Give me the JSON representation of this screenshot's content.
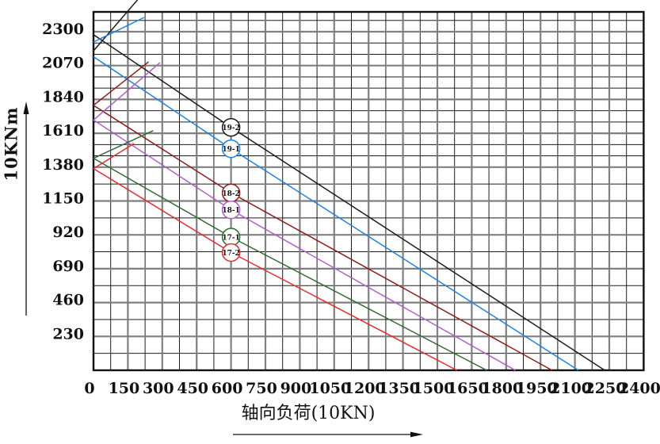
{
  "chart_data": {
    "type": "line",
    "title": "",
    "xlabel": "轴向负荷(10KN)",
    "ylabel": "10KNm",
    "xlim": [
      0,
      2400
    ],
    "ylim": [
      0,
      2434
    ],
    "grid": true,
    "legend_position": "on-line-circled-markers",
    "x_ticks": [
      0,
      150,
      300,
      450,
      600,
      750,
      900,
      1050,
      1200,
      1350,
      1500,
      1650,
      1800,
      1950,
      2100,
      2250,
      2400
    ],
    "y_ticks": [
      230,
      460,
      690,
      920,
      1150,
      1380,
      1610,
      1840,
      2070,
      2300
    ],
    "x_minor": [
      75,
      225,
      375,
      525,
      675,
      825,
      975,
      1125,
      1275,
      1425,
      1575,
      1725,
      1875,
      2025,
      2175,
      2325
    ],
    "y_minor": [
      115,
      345,
      575,
      805,
      1035,
      1265,
      1456.7,
      1533.3,
      1686.7,
      1763.3,
      1916.7,
      1993.3,
      2146.7,
      2223.3,
      2376.7
    ],
    "axis_color": "#111111",
    "major_grid_color": "#7f7f7f",
    "minor_grid_color": "#1c1c1c",
    "series": [
      {
        "name": "19-2",
        "color": "#1b1b1b",
        "points": [
          [
            0,
            2280
          ],
          [
            600,
            1650
          ],
          [
            2230,
            0
          ]
        ],
        "tail": [
          [
            0,
            2170
          ],
          [
            192,
            2516
          ]
        ]
      },
      {
        "name": "19-1",
        "color": "#1E82E4",
        "points": [
          [
            0,
            2130
          ],
          [
            600,
            1505
          ],
          [
            2115,
            0
          ]
        ],
        "tail": [
          [
            0,
            2230
          ],
          [
            221,
            2397
          ]
        ]
      },
      {
        "name": "18-2",
        "color": "#8E1C1C",
        "points": [
          [
            0,
            1800
          ],
          [
            600,
            1205
          ],
          [
            2000,
            0
          ]
        ],
        "tail": [
          [
            0,
            1800
          ],
          [
            240,
            2095
          ]
        ]
      },
      {
        "name": "18-1",
        "color": "#B05FC8",
        "points": [
          [
            0,
            1700
          ],
          [
            600,
            1090
          ],
          [
            1840,
            0
          ]
        ],
        "tail": [
          [
            0,
            1700
          ],
          [
            290,
            2090
          ]
        ]
      },
      {
        "name": "17-1",
        "color": "#2F6B31",
        "points": [
          [
            0,
            1440
          ],
          [
            600,
            905
          ],
          [
            1715,
            0
          ]
        ],
        "tail": [
          [
            0,
            1440
          ],
          [
            260,
            1628
          ]
        ]
      },
      {
        "name": "17-2",
        "color": "#E62C2C",
        "points": [
          [
            0,
            1370
          ],
          [
            600,
            800
          ],
          [
            1585,
            0
          ]
        ],
        "tail": [
          [
            0,
            1370
          ],
          [
            176,
            1540
          ]
        ]
      }
    ],
    "markers_note": "each series is labeled by a circled tag placed on the line at axial load = 600"
  }
}
